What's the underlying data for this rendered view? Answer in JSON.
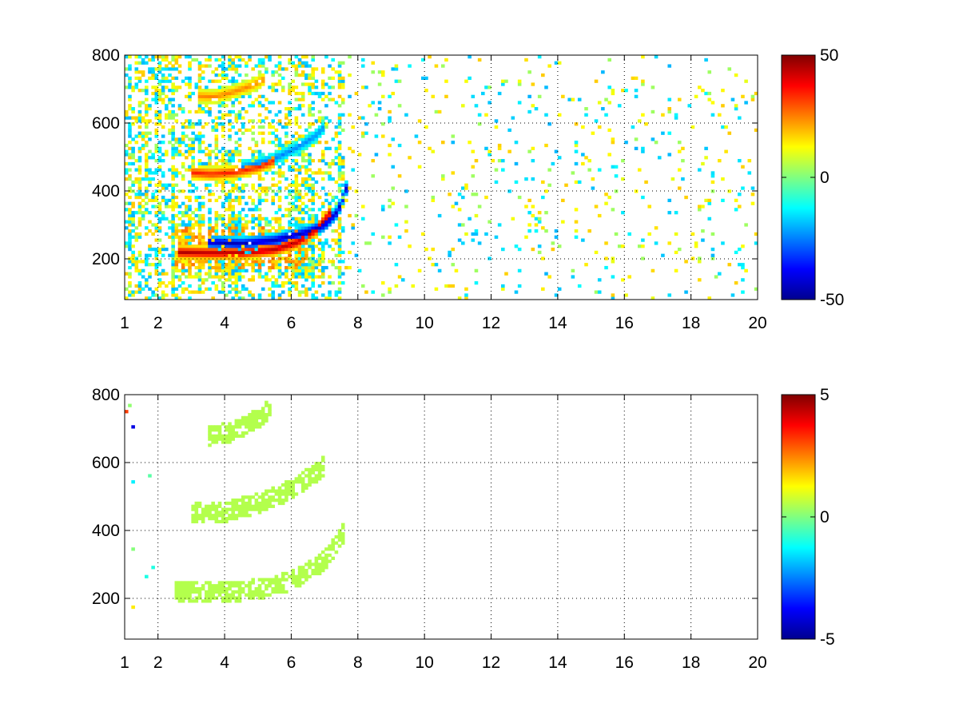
{
  "chart_data": [
    {
      "type": "heatmap",
      "title": "",
      "xlabel": "",
      "ylabel": "",
      "xlim": [
        1,
        20
      ],
      "ylim": [
        80,
        800
      ],
      "xticks": [
        1,
        2,
        4,
        6,
        8,
        10,
        12,
        14,
        16,
        18,
        20
      ],
      "xtick_labels": [
        "1",
        "2",
        "4",
        "6",
        "8",
        "10",
        "12",
        "14",
        "16",
        "18",
        "20"
      ],
      "yticks": [
        200,
        400,
        600,
        800
      ],
      "ytick_labels": [
        "200",
        "400",
        "600",
        "800"
      ],
      "grid": true,
      "colormap": "jet",
      "clim": [
        -50,
        50
      ],
      "colorbar_ticks": [
        -50,
        0,
        50
      ],
      "colorbar_labels": [
        "-50",
        "0",
        "50"
      ],
      "curves": [
        {
          "value": 45,
          "points": [
            [
              2.6,
              220
            ],
            [
              3.5,
              218
            ],
            [
              4.5,
              218
            ],
            [
              5.5,
              228
            ],
            [
              6.2,
              250
            ],
            [
              6.8,
              290
            ],
            [
              7.2,
              340
            ]
          ]
        },
        {
          "value": -45,
          "points": [
            [
              3.5,
              250
            ],
            [
              4.5,
              245
            ],
            [
              5.5,
              255
            ],
            [
              6.5,
              280
            ],
            [
              7.0,
              300
            ],
            [
              7.4,
              340
            ],
            [
              7.7,
              420
            ]
          ]
        },
        {
          "value": 35,
          "points": [
            [
              3.0,
              455
            ],
            [
              3.6,
              450
            ],
            [
              4.3,
              455
            ],
            [
              5.0,
              470
            ],
            [
              5.5,
              490
            ]
          ]
        },
        {
          "value": -25,
          "points": [
            [
              4.5,
              470
            ],
            [
              5.5,
              495
            ],
            [
              6.2,
              530
            ],
            [
              6.7,
              560
            ],
            [
              7.0,
              590
            ]
          ]
        },
        {
          "value": 25,
          "points": [
            [
              3.2,
              680
            ],
            [
              3.7,
              678
            ],
            [
              4.2,
              690
            ],
            [
              4.8,
              710
            ],
            [
              5.2,
              730
            ]
          ]
        }
      ]
    },
    {
      "type": "heatmap",
      "title": "",
      "xlabel": "",
      "ylabel": "",
      "xlim": [
        1,
        20
      ],
      "ylim": [
        80,
        800
      ],
      "xticks": [
        1,
        2,
        4,
        6,
        8,
        10,
        12,
        14,
        16,
        18,
        20
      ],
      "xtick_labels": [
        "1",
        "2",
        "4",
        "6",
        "8",
        "10",
        "12",
        "14",
        "16",
        "18",
        "20"
      ],
      "yticks": [
        200,
        400,
        600,
        800
      ],
      "ytick_labels": [
        "200",
        "400",
        "600",
        "800"
      ],
      "grid": true,
      "colormap": "jet",
      "clim": [
        -5,
        5
      ],
      "colorbar_ticks": [
        -5,
        0,
        5
      ],
      "colorbar_labels": [
        "-5",
        "0",
        "5"
      ],
      "dominant_value": 0.5,
      "curves": [
        {
          "points": [
            [
              2.5,
              220
            ],
            [
              3.5,
              218
            ],
            [
              4.5,
              222
            ],
            [
              5.5,
              235
            ],
            [
              6.3,
              265
            ],
            [
              7.0,
              310
            ],
            [
              7.6,
              400
            ]
          ]
        },
        {
          "points": [
            [
              3.0,
              450
            ],
            [
              4.0,
              455
            ],
            [
              5.0,
              480
            ],
            [
              6.0,
              520
            ],
            [
              7.0,
              590
            ]
          ]
        },
        {
          "points": [
            [
              3.5,
              680
            ],
            [
              4.2,
              690
            ],
            [
              5.0,
              730
            ],
            [
              5.4,
              760
            ]
          ]
        }
      ]
    }
  ]
}
